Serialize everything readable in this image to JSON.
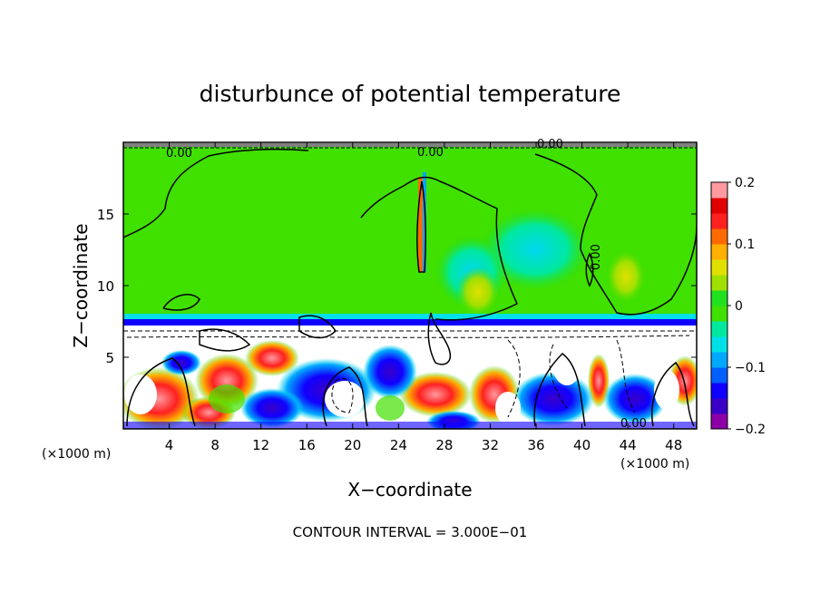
{
  "chart_data": {
    "type": "heatmap",
    "title": "disturbunce of potential temperature",
    "xlabel": "X−coordinate",
    "ylabel": "Z−coordinate",
    "x_unit": "(×1000 m)",
    "x_unit_right": "(×1000 m)",
    "xlim": [
      0,
      50
    ],
    "ylim": [
      0,
      20
    ],
    "x_ticks": [
      4,
      8,
      12,
      16,
      20,
      24,
      28,
      32,
      36,
      40,
      44,
      48
    ],
    "y_ticks": [
      5,
      10,
      15
    ],
    "colorbar": {
      "vmin": -0.2,
      "vmax": 0.2,
      "ticks": [
        0.2,
        0.1,
        0,
        -0.1,
        -0.2
      ],
      "tick_labels": [
        "0.2",
        "0.1",
        "0",
        "−0.1",
        "−0.2"
      ],
      "colors": [
        "#8c00a8",
        "#3a00c8",
        "#1000ff",
        "#0060ff",
        "#00a8ff",
        "#00e0e8",
        "#00e8a0",
        "#40e000",
        "#20e020",
        "#a0e000",
        "#e0e000",
        "#ffb000",
        "#ff6a00",
        "#ff2020",
        "#e00000",
        "#ff9aa0"
      ]
    },
    "contour_labels": [
      "0.00",
      "0.00",
      "0.00",
      "0.00",
      "0.00"
    ],
    "contour_interval": "CONTOUR INTERVAL = 3.000E−01"
  }
}
